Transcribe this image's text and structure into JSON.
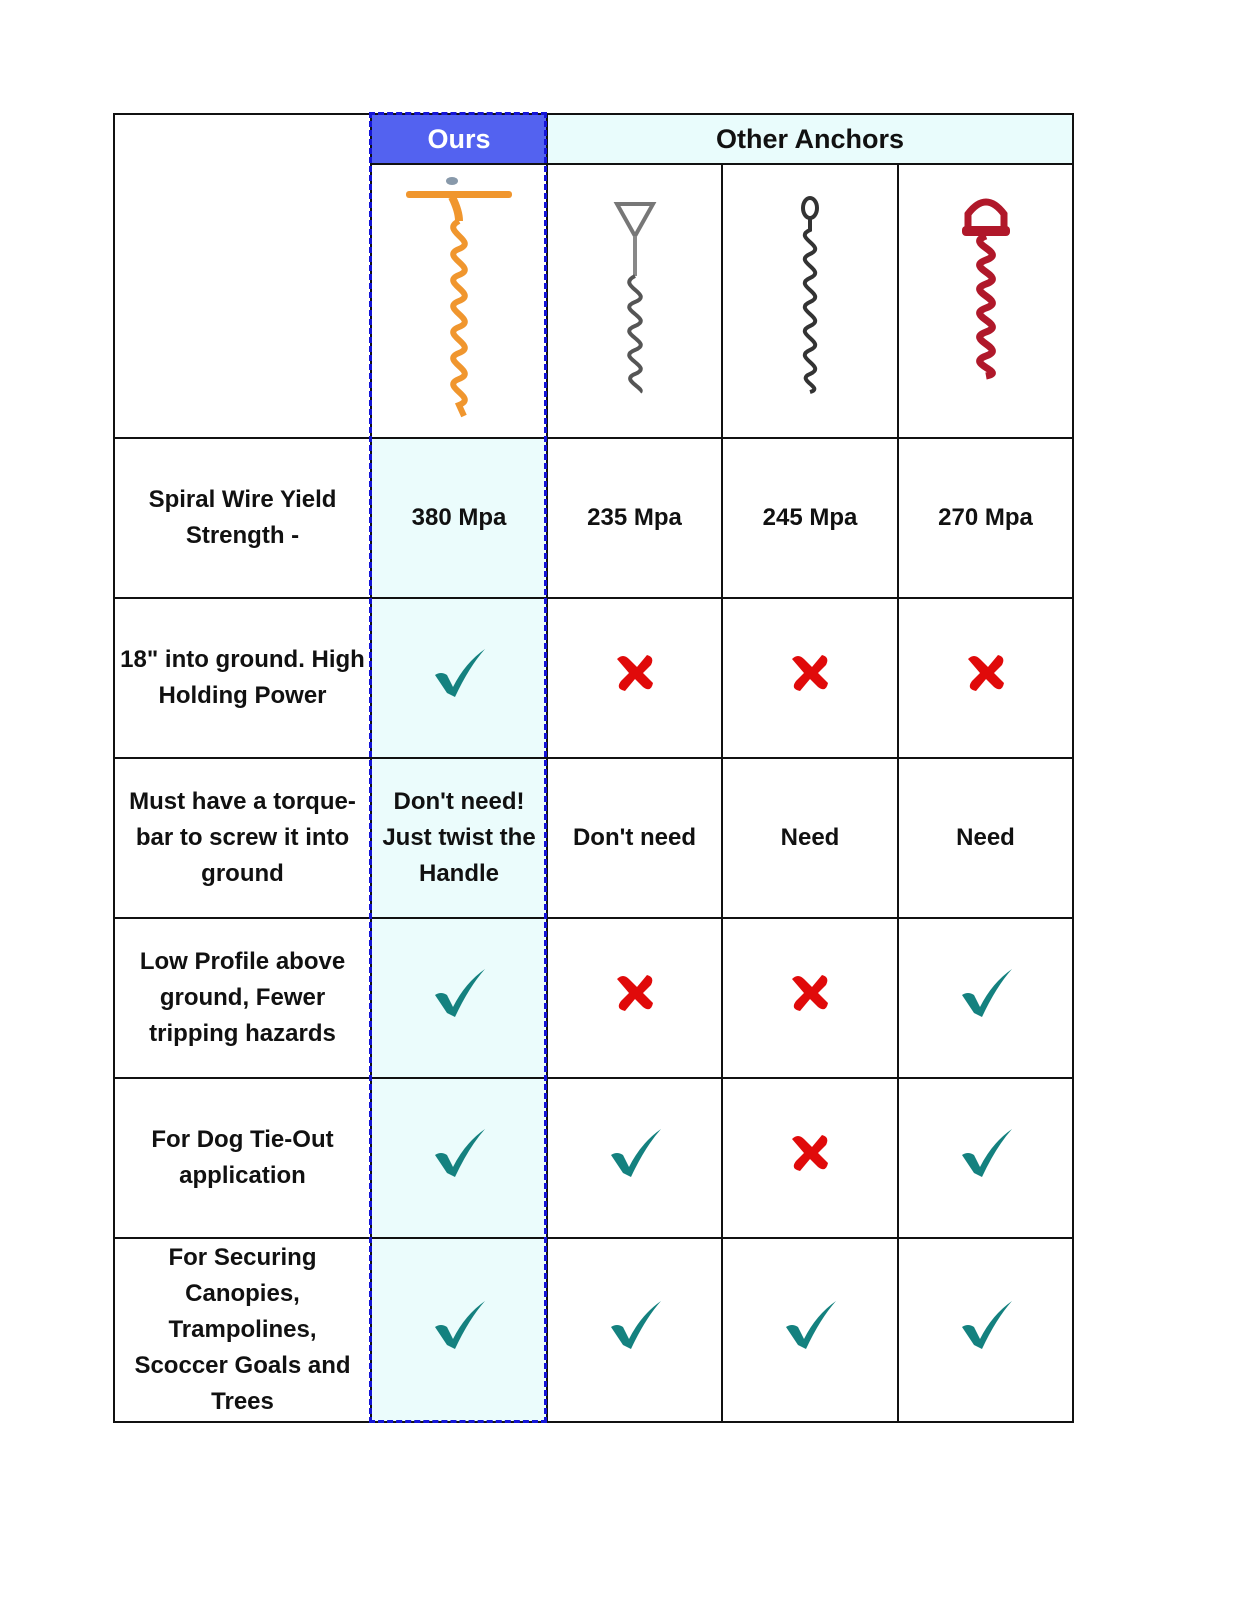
{
  "header": {
    "ours": "Ours",
    "others": "Other Anchors"
  },
  "products": [
    {
      "name": "ours-anchor",
      "color": "#f0962e"
    },
    {
      "name": "triangle-handle-anchor",
      "color": "#888888"
    },
    {
      "name": "loop-anchor",
      "color": "#333333"
    },
    {
      "name": "red-dome-anchor",
      "color": "#b0182a"
    }
  ],
  "colors": {
    "check": "#14817f",
    "cross": "#e00a0a",
    "ours_header": "#5362f0",
    "highlight": "#ebfcfc",
    "dash": "#1414d8"
  },
  "rows": [
    {
      "label": "Spiral Wire Yield Strength -",
      "cells": [
        "380 Mpa",
        "235 Mpa",
        "245 Mpa",
        "270 Mpa"
      ]
    },
    {
      "label": "18\" into ground. High Holding Power",
      "cells": [
        "check",
        "cross",
        "cross",
        "cross"
      ]
    },
    {
      "label": "Must have a torque-bar to screw it into ground",
      "cells": [
        "Don't need! Just twist the Handle",
        "Don't need",
        "Need",
        "Need"
      ]
    },
    {
      "label": "Low Profile above ground, Fewer tripping hazards",
      "cells": [
        "check",
        "cross",
        "cross",
        "check"
      ]
    },
    {
      "label": "For Dog Tie-Out application",
      "cells": [
        "check",
        "check",
        "cross",
        "check"
      ]
    },
    {
      "label": "For Securing Canopies, Trampolines, Scoccer Goals and Trees",
      "cells": [
        "check",
        "check",
        "check",
        "check"
      ]
    }
  ]
}
